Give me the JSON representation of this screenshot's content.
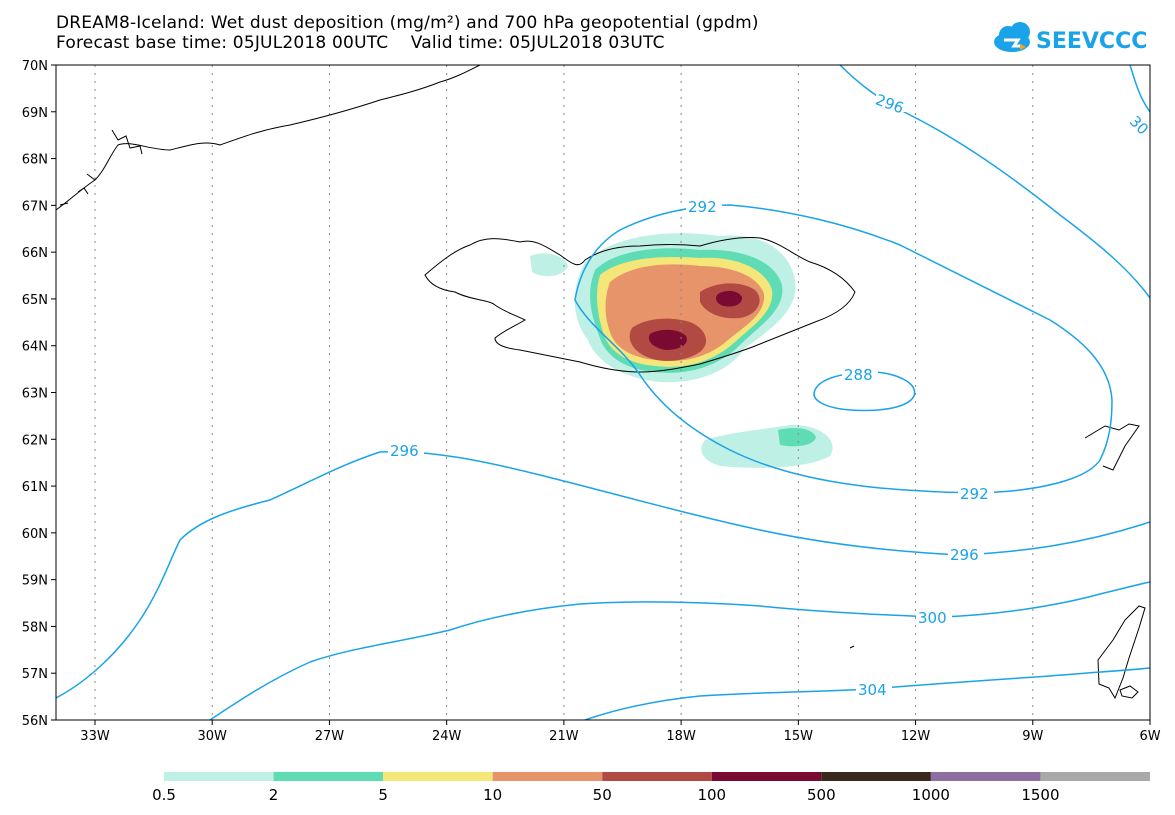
{
  "header": {
    "title_line1": "DREAM8-Iceland: Wet dust deposition (mg/m²) and 700 hPa geopotential (gpdm)",
    "title_line2": "Forecast base time: 05JUL2018 00UTC    Valid time: 05JUL2018 03UTC"
  },
  "logo": {
    "text": "SEEVCCC",
    "icon": "cloud-icon",
    "color": "#1aa3e8"
  },
  "map": {
    "lat_labels": [
      "70N",
      "69N",
      "68N",
      "67N",
      "66N",
      "65N",
      "64N",
      "63N",
      "62N",
      "61N",
      "60N",
      "59N",
      "58N",
      "57N",
      "56N"
    ],
    "lon_labels": [
      "33W",
      "30W",
      "27W",
      "24W",
      "21W",
      "18W",
      "15W",
      "12W",
      "9W",
      "6W"
    ],
    "contour_color": "#1aa3e8",
    "contour_labels": [
      "296",
      "30",
      "292",
      "288",
      "296",
      "292",
      "296",
      "300",
      "304"
    ]
  },
  "legend": {
    "colors": [
      "#bff0e6",
      "#5fdcb4",
      "#f5e67a",
      "#e8946a",
      "#b24a44",
      "#7a0a32",
      "#3a2a1e",
      "#8e6ea0",
      "#a8a8a8"
    ],
    "labels": [
      "0.5",
      "2",
      "5",
      "10",
      "50",
      "100",
      "500",
      "1000",
      "1500"
    ]
  }
}
